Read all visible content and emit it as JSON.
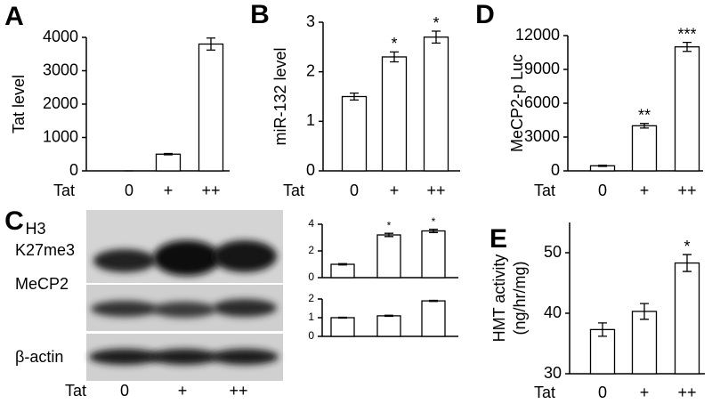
{
  "chart_data": [
    {
      "type": "bar",
      "panel": "A",
      "ylabel": "Tat level",
      "xlabel": "Tat",
      "categories": [
        "0",
        "+",
        "++"
      ],
      "values": [
        0,
        500,
        3800
      ],
      "errors": [
        0,
        20,
        180
      ],
      "color": "#ffffff",
      "ylim": [
        0,
        4000
      ],
      "yticks": [
        0,
        1000,
        2000,
        3000,
        4000
      ]
    },
    {
      "type": "bar",
      "panel": "B",
      "ylabel": "miR-132 level",
      "xlabel": "Tat",
      "categories": [
        "0",
        "+",
        "++"
      ],
      "values": [
        1.5,
        2.3,
        2.7
      ],
      "errors": [
        0.07,
        0.1,
        0.12
      ],
      "significance": [
        null,
        "*",
        "*"
      ],
      "color": "#ffffff",
      "ylim": [
        0,
        3
      ],
      "yticks": [
        0,
        1,
        2,
        3
      ]
    },
    {
      "type": "bar",
      "panel": "D",
      "ylabel": "MeCP2-p Luc",
      "xlabel": "Tat",
      "categories": [
        "0",
        "+",
        "++"
      ],
      "values": [
        450,
        4000,
        11000
      ],
      "errors": [
        50,
        200,
        400
      ],
      "significance": [
        null,
        "**",
        "***"
      ],
      "color": "#ffffff",
      "ylim": [
        0,
        12000
      ],
      "yticks": [
        0,
        3000,
        6000,
        9000,
        12000
      ]
    },
    {
      "type": "bar",
      "panel": "E",
      "ylabel": [
        "HMT activity",
        "(ng/hr/mg)"
      ],
      "xlabel": "Tat",
      "categories": [
        "0",
        "+",
        "++"
      ],
      "values": [
        37.3,
        40.3,
        48.3
      ],
      "errors": [
        1.1,
        1.3,
        1.4
      ],
      "significance": [
        null,
        null,
        "*"
      ],
      "color": "#ffffff",
      "ylim": [
        30,
        55
      ],
      "yticks": [
        30,
        40,
        50
      ]
    },
    {
      "type": "bar",
      "values": [
        1,
        3.2,
        3.5
      ],
      "errors": [
        0.05,
        0.12,
        0.12
      ],
      "significance": [
        null,
        "*",
        "*"
      ],
      "color": "#ffffff",
      "ylim": [
        0,
        4
      ],
      "yticks": [
        0,
        2,
        4
      ]
    },
    {
      "type": "bar",
      "values": [
        1,
        1.1,
        1.9
      ],
      "errors": [
        0.02,
        0.03,
        0.03
      ],
      "color": "#ffffff",
      "ylim": [
        0,
        2
      ],
      "yticks": [
        0,
        1,
        2
      ]
    }
  ],
  "blot": {
    "panel": "C",
    "rows": [
      [
        "H3",
        "K27me3"
      ],
      [
        "MeCP2"
      ],
      [
        "β-actin"
      ]
    ],
    "xlabel": "Tat",
    "categories": [
      "0",
      "+",
      "++"
    ]
  }
}
